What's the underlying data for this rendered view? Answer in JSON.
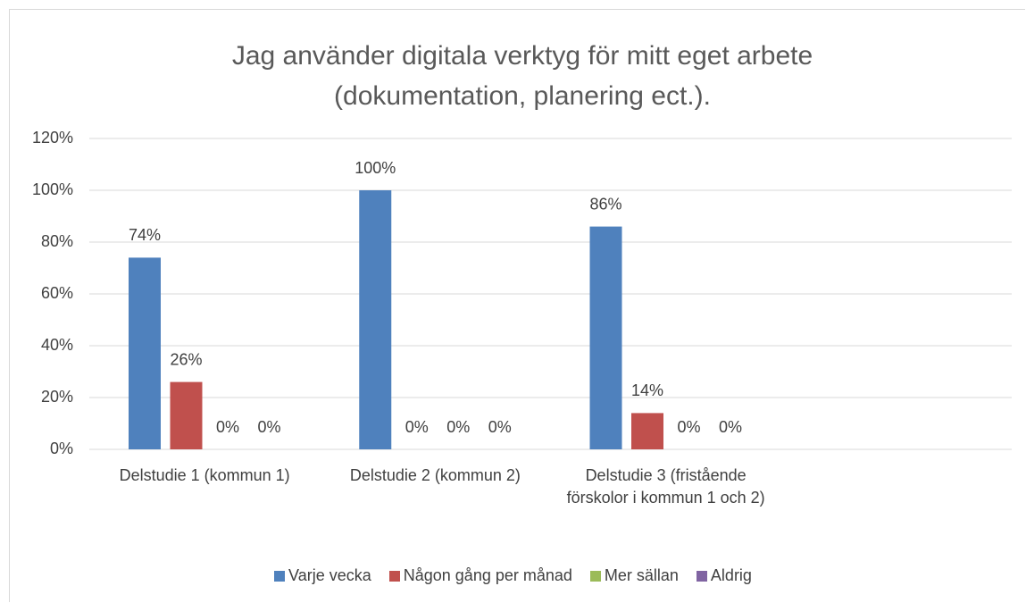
{
  "chart_data": {
    "type": "bar",
    "title": "Jag använder digitala verktyg för mitt eget arbete (dokumentation, planering ect.).",
    "categories": [
      "Delstudie 1 (kommun 1)",
      "Delstudie 2 (kommun 2)",
      "Delstudie 3 (fristående förskolor i kommun 1 och 2)",
      null
    ],
    "series": [
      {
        "name": "Varje vecka",
        "color": "#4f81bd",
        "values": [
          74,
          100,
          86,
          null
        ],
        "value_labels": [
          "74%",
          "100%",
          "86%",
          null
        ]
      },
      {
        "name": "Någon gång per månad",
        "color": "#c0504d",
        "values": [
          26,
          0,
          14,
          null
        ],
        "value_labels": [
          "26%",
          "0%",
          "14%",
          null
        ]
      },
      {
        "name": "Mer sällan",
        "color": "#9bbb59",
        "values": [
          0,
          0,
          0,
          null
        ],
        "value_labels": [
          "0%",
          "0%",
          "0%",
          null
        ]
      },
      {
        "name": "Aldrig",
        "color": "#8064a2",
        "values": [
          0,
          0,
          0,
          null
        ],
        "value_labels": [
          "0%",
          "0%",
          "0%",
          null
        ]
      }
    ],
    "ylim": [
      0,
      120
    ],
    "yticks": [
      {
        "value": 0,
        "label": "0%"
      },
      {
        "value": 20,
        "label": "20%"
      },
      {
        "value": 40,
        "label": "40%"
      },
      {
        "value": 60,
        "label": "60%"
      },
      {
        "value": 80,
        "label": "80%"
      },
      {
        "value": 100,
        "label": "100%"
      },
      {
        "value": 120,
        "label": "120%"
      }
    ],
    "grid": true,
    "legend": "bottom"
  }
}
